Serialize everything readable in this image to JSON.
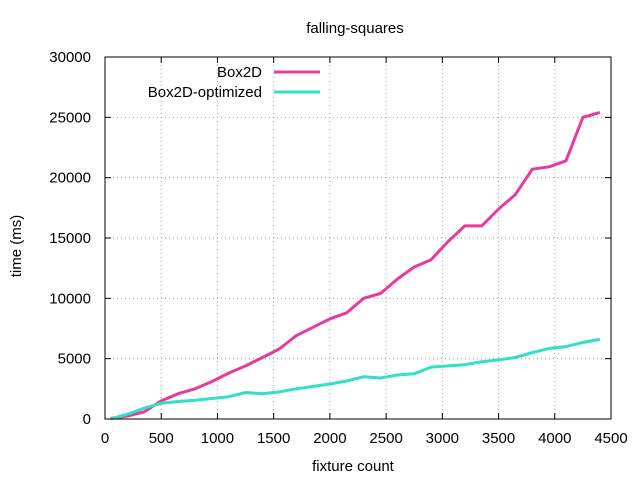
{
  "chart_data": {
    "type": "line",
    "title": "falling-squares",
    "xlabel": "fixture count",
    "ylabel": "time (ms)",
    "xlim": [
      0,
      4500
    ],
    "ylim": [
      0,
      30000
    ],
    "xticks": [
      0,
      500,
      1000,
      1500,
      2000,
      2500,
      3000,
      3500,
      4000,
      4500
    ],
    "yticks": [
      0,
      5000,
      10000,
      15000,
      20000,
      25000,
      30000
    ],
    "grid": true,
    "legend": "top-left",
    "series": [
      {
        "name": "Box2D",
        "color": "#e83a9b",
        "x": [
          50,
          200,
          350,
          500,
          650,
          800,
          950,
          1100,
          1250,
          1400,
          1550,
          1700,
          1850,
          2000,
          2150,
          2300,
          2450,
          2600,
          2750,
          2900,
          3050,
          3200,
          3350,
          3500,
          3650,
          3800,
          3950,
          4100,
          4250,
          4400
        ],
        "y": [
          50,
          250,
          600,
          1500,
          2100,
          2500,
          3100,
          3800,
          4400,
          5100,
          5800,
          6900,
          7600,
          8300,
          8800,
          10000,
          10400,
          11600,
          12600,
          13200,
          14700,
          16000,
          16000,
          17400,
          18600,
          20700,
          20900,
          21400,
          25000,
          25400
        ]
      },
      {
        "name": "Box2D-optimized",
        "color": "#33dfc6",
        "x": [
          50,
          200,
          350,
          500,
          650,
          800,
          950,
          1100,
          1250,
          1400,
          1550,
          1700,
          1850,
          2000,
          2150,
          2300,
          2450,
          2600,
          2750,
          2900,
          3050,
          3200,
          3350,
          3500,
          3650,
          3800,
          3950,
          4100,
          4250,
          4400
        ],
        "y": [
          0,
          400,
          900,
          1300,
          1450,
          1550,
          1700,
          1850,
          2200,
          2100,
          2250,
          2500,
          2700,
          2900,
          3150,
          3500,
          3400,
          3650,
          3750,
          4300,
          4400,
          4500,
          4750,
          4900,
          5100,
          5500,
          5850,
          6000,
          6350,
          6600
        ]
      }
    ]
  }
}
